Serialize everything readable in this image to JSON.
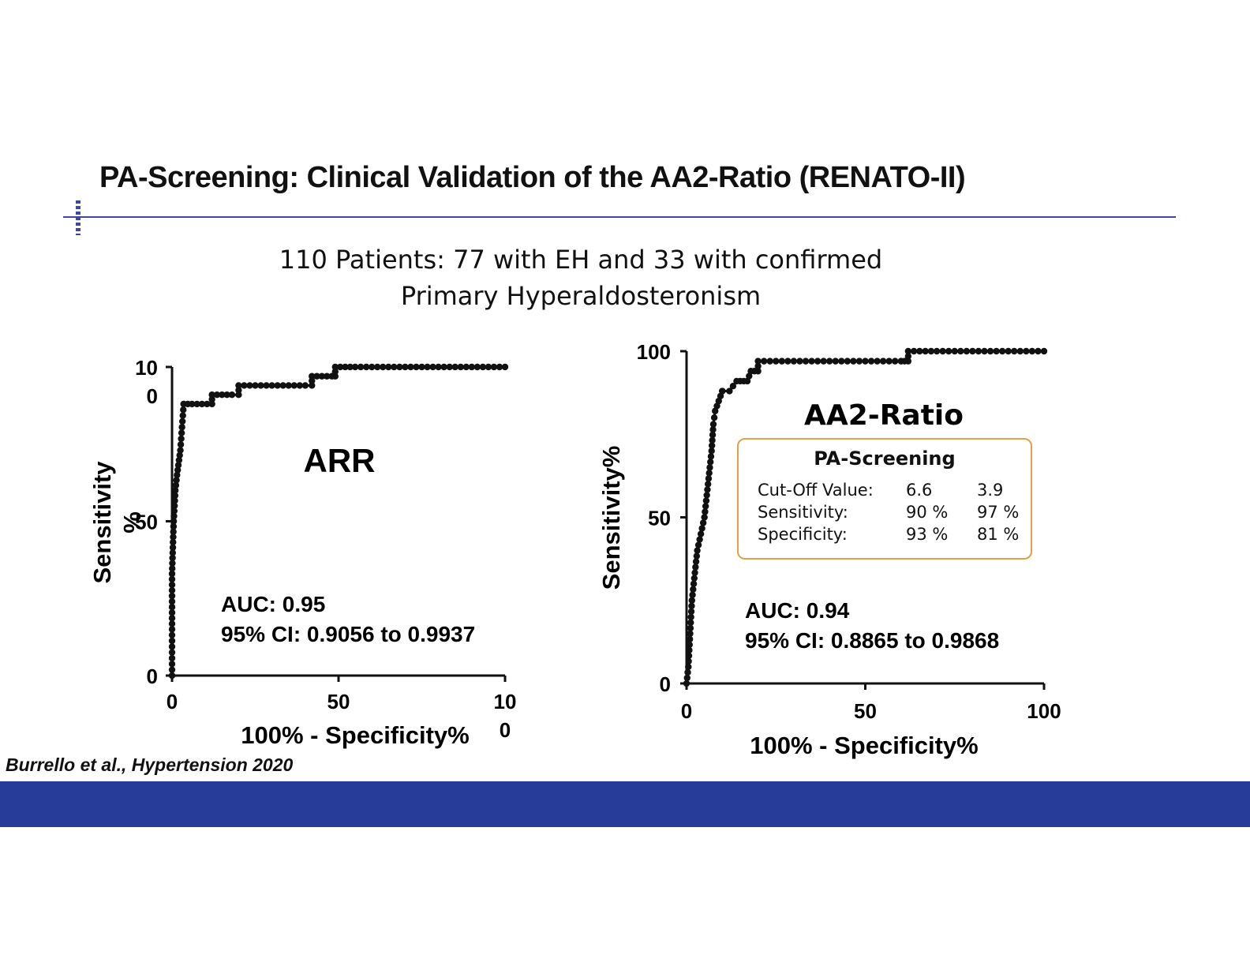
{
  "slide": {
    "title": "PA-Screening: Clinical Validation of the AA2-Ratio (RENATO-II)",
    "subtitle_line1": "110 Patients: 77 with EH and 33 with confirmed",
    "subtitle_line2": "Primary Hyperaldosteronism",
    "citation": "Burrello et al., Hypertension 2020"
  },
  "colors": {
    "rule": "#3a4aa0",
    "footer_band": "#263c98",
    "box_border": "#e0a14a",
    "curve": "#111111"
  },
  "chart_data": [
    {
      "type": "line",
      "title": "ARR",
      "xlabel": "100% - Specificity%",
      "ylabel": "Sensitivity %",
      "xlim": [
        0,
        100
      ],
      "ylim": [
        0,
        100
      ],
      "x_tick_labels": [
        "0",
        "50",
        "10\n0"
      ],
      "y_tick_labels": [
        "0",
        "50",
        "10\n0"
      ],
      "annotations": [
        "AUC: 0.95",
        "95% CI: 0.9056 to 0.9937"
      ],
      "series": [
        {
          "marker": "dot",
          "x": [
            0,
            0,
            0,
            0.5,
            1,
            1.5,
            2.5,
            3.5,
            3.5,
            6,
            9,
            12,
            12,
            15,
            18,
            20,
            20,
            25,
            30,
            35,
            40,
            42,
            42,
            45,
            48,
            49,
            49,
            55,
            60,
            65,
            70,
            75,
            80,
            85,
            90,
            95,
            100
          ],
          "y": [
            0,
            15,
            33,
            50,
            60,
            65,
            73,
            88,
            88,
            88,
            88,
            88,
            91,
            91,
            91,
            91,
            94,
            94,
            94,
            94,
            94,
            94,
            97,
            97,
            97,
            97,
            100,
            100,
            100,
            100,
            100,
            100,
            100,
            100,
            100,
            100,
            100
          ]
        }
      ]
    },
    {
      "type": "line",
      "title": "AA2-Ratio",
      "xlabel": "100% - Specificity%",
      "ylabel": "Sensitivity%",
      "xlim": [
        0,
        100
      ],
      "ylim": [
        0,
        100
      ],
      "x_tick_labels": [
        "0",
        "50",
        "100"
      ],
      "y_tick_labels": [
        "0",
        "50",
        "100"
      ],
      "annotations": [
        "AUC: 0.94",
        "95% CI: 0.8865 to 0.9868"
      ],
      "series": [
        {
          "marker": "dot",
          "x": [
            0,
            0.5,
            1,
            1.5,
            2,
            3,
            4,
            5,
            6,
            7,
            7.5,
            8,
            9,
            10,
            10,
            12,
            14,
            15,
            16,
            17,
            18,
            19,
            20,
            20,
            25,
            30,
            35,
            40,
            45,
            50,
            55,
            60,
            61,
            62,
            62,
            70,
            80,
            90,
            100
          ],
          "y": [
            0,
            5,
            15,
            25,
            30,
            40,
            45,
            50,
            60,
            70,
            78,
            82,
            85,
            88,
            88,
            88,
            91,
            91,
            91,
            91,
            94,
            94,
            94,
            97,
            97,
            97,
            97,
            97,
            97,
            97,
            97,
            97,
            97,
            97,
            100,
            100,
            100,
            100,
            100
          ]
        }
      ]
    }
  ],
  "info_box": {
    "heading": "PA-Screening",
    "rows": [
      {
        "label": "Cut-Off Value:",
        "v1": "6.6",
        "v2": "3.9"
      },
      {
        "label": "Sensitivity:",
        "v1": "90 %",
        "v2": "97 %"
      },
      {
        "label": "Specificity:",
        "v1": "93 %",
        "v2": "81 %"
      }
    ]
  }
}
